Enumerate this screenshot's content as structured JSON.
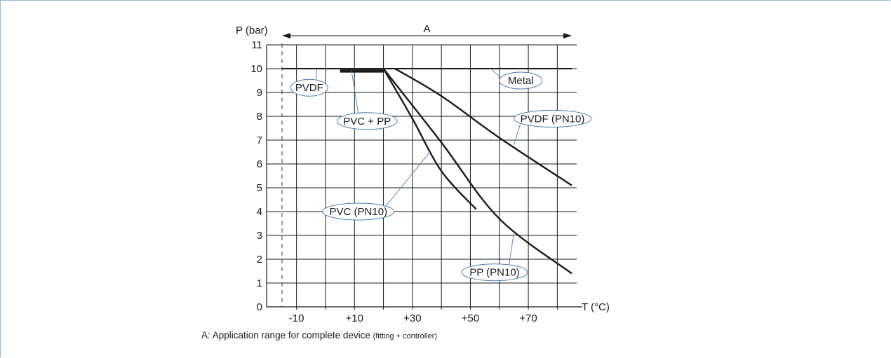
{
  "chart_data": {
    "type": "line",
    "ylabel": "P (bar)",
    "xlabel": "T (°C)",
    "xlim": [
      -15,
      85
    ],
    "ylim": [
      0,
      11
    ],
    "x_ticks": [
      -10,
      10,
      30,
      50,
      70
    ],
    "x_tick_labels": [
      "-10",
      "+10",
      "+30",
      "+50",
      "+70"
    ],
    "y_ticks": [
      0,
      1,
      2,
      3,
      4,
      5,
      6,
      7,
      8,
      9,
      10,
      11
    ],
    "y_tick_labels": [
      "0",
      "1",
      "2",
      "3",
      "4",
      "5",
      "6",
      "7",
      "8",
      "9",
      "10",
      "11"
    ],
    "grid": true,
    "range_marker": {
      "label": "A",
      "from": -15,
      "to": 85
    },
    "dashed_reference_x": -15,
    "series": [
      {
        "name": "Metal",
        "x": [
          -15,
          85
        ],
        "y": [
          10,
          10
        ],
        "label_at": [
          60,
          9.5
        ],
        "anchor": [
          57,
          10
        ]
      },
      {
        "name": "PVDF",
        "x": [
          -15,
          85
        ],
        "y": [
          10,
          10
        ],
        "label_at": [
          -12,
          9.2
        ],
        "anchor": [
          -3,
          10
        ]
      },
      {
        "name": "PVC + PP",
        "x": [
          5,
          20
        ],
        "y": [
          9.9,
          9.9
        ],
        "label_at": [
          4,
          7.8
        ],
        "anchor": [
          9,
          9.9
        ]
      },
      {
        "name": "PVDF (PN10)",
        "x": [
          24,
          40,
          60,
          85
        ],
        "y": [
          10,
          8.85,
          7.1,
          5.1
        ],
        "label_at": [
          65,
          7.9
        ],
        "anchor": [
          65,
          6.8
        ]
      },
      {
        "name": "PVC (PN10)",
        "x": [
          20,
          30,
          40,
          52
        ],
        "y": [
          10,
          7.9,
          5.7,
          4.1
        ],
        "label_at": [
          -1,
          4.0
        ],
        "anchor": [
          36,
          6.5
        ]
      },
      {
        "name": "PP (PN10)",
        "x": [
          20,
          40,
          60,
          85
        ],
        "y": [
          10,
          6.9,
          3.7,
          1.4
        ],
        "label_at": [
          47,
          1.45
        ],
        "anchor": [
          65,
          3.1
        ]
      }
    ]
  },
  "caption": {
    "main": "A: Application range for complete device",
    "small": "(fitting + controller)"
  }
}
